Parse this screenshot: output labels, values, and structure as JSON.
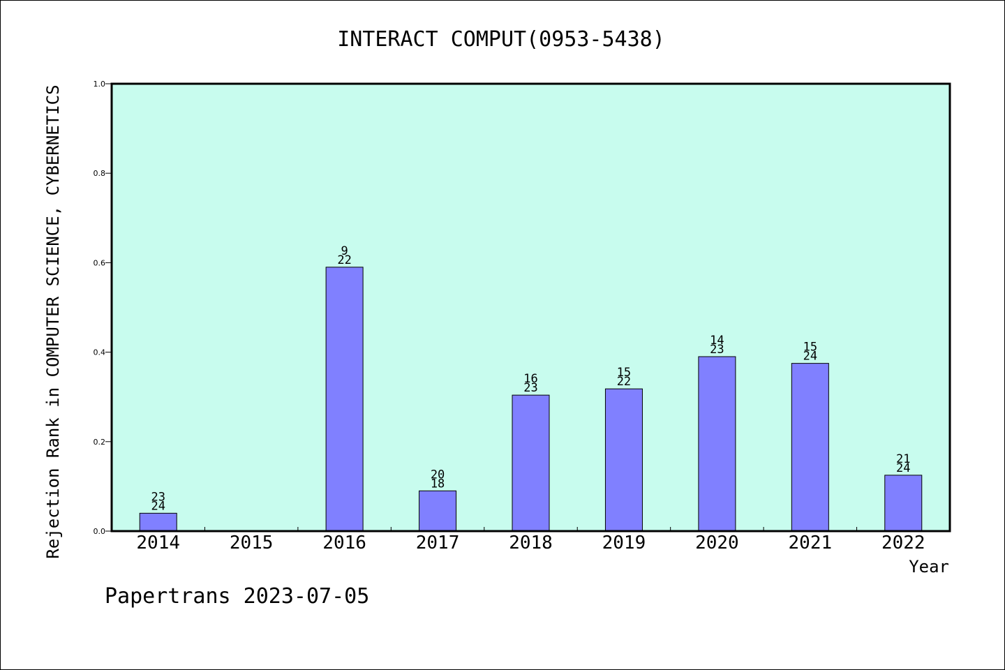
{
  "chart_data": {
    "type": "bar",
    "title": "INTERACT COMPUT(0953-5438)",
    "xlabel": "Year",
    "ylabel": "Rejection Rank in COMPUTER SCIENCE, CYBERNETICS",
    "categories": [
      "2014",
      "2015",
      "2016",
      "2017",
      "2018",
      "2019",
      "2020",
      "2021",
      "2022"
    ],
    "values": [
      0.04,
      null,
      0.59,
      0.09,
      0.304,
      0.318,
      0.39,
      0.375,
      0.125
    ],
    "annotations_top": [
      "23",
      "",
      "9",
      "20",
      "16",
      "15",
      "14",
      "15",
      "21"
    ],
    "annotations_bottom": [
      "24",
      "",
      "22",
      "18",
      "23",
      "22",
      "23",
      "24",
      "24"
    ],
    "ylim": [
      0,
      1.0
    ],
    "yticks": [
      "0.0",
      "0.2",
      "0.4",
      "0.6",
      "0.8",
      "1.0"
    ],
    "grid": false,
    "footer": "Papertrans 2023-07-05",
    "colors": {
      "plot_background": "#c8fcee",
      "bar_fill": "#8080ff",
      "bar_stroke": "#000000",
      "axis": "#000000"
    }
  }
}
